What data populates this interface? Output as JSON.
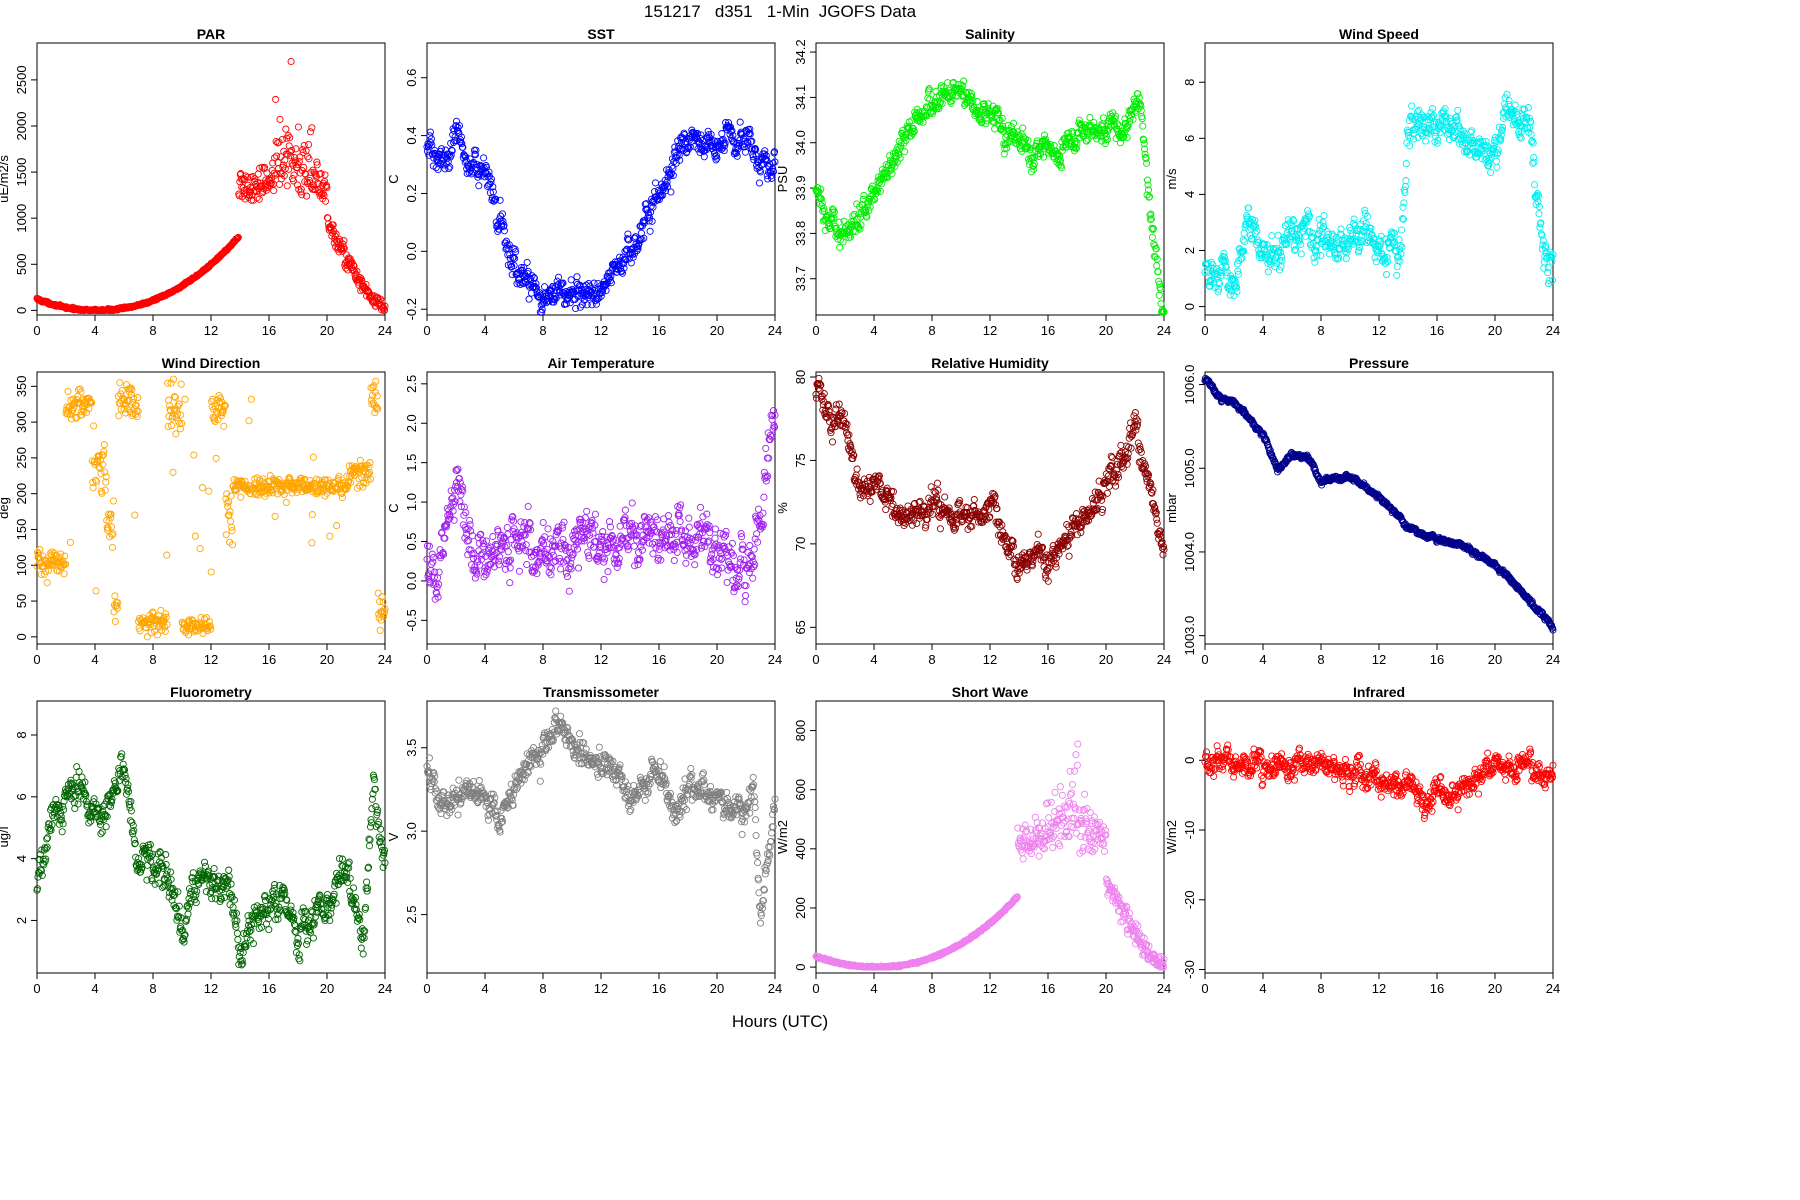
{
  "figure": {
    "title": "151217   d351   1-Min  JGOFS Data",
    "xlabel": "Hours (UTC)"
  },
  "chart_data": [
    {
      "type": "scatter",
      "title": "PAR",
      "ylabel": "uE/m2/s",
      "color": "#ff0000",
      "xlim": [
        0,
        24
      ],
      "ylim": [
        -50,
        2900
      ],
      "xticks": [
        0,
        4,
        8,
        12,
        16,
        20,
        24
      ],
      "yticks": [
        0,
        500,
        1000,
        1500,
        2000,
        2500
      ],
      "shape": "par",
      "min": 0,
      "max": 2750,
      "noise": 0.03
    },
    {
      "type": "scatter",
      "title": "SST",
      "ylabel": "C",
      "color": "#0000ff",
      "xlim": [
        0,
        24
      ],
      "ylim": [
        -0.22,
        0.72
      ],
      "xticks": [
        0,
        4,
        8,
        12,
        16,
        20,
        24
      ],
      "yticks": [
        -0.2,
        0,
        0.2,
        0.4,
        0.6
      ],
      "ytick_labels": [
        "-0.2",
        "0.0",
        "0.2",
        "0.4",
        "0.6"
      ],
      "anchors": [
        [
          0,
          0.33
        ],
        [
          2,
          0.38
        ],
        [
          4,
          0.25
        ],
        [
          6,
          -0.05
        ],
        [
          8,
          -0.15
        ],
        [
          10,
          -0.12
        ],
        [
          12,
          -0.15
        ],
        [
          14,
          0.02
        ],
        [
          16,
          0.2
        ],
        [
          18,
          0.4
        ],
        [
          20,
          0.38
        ],
        [
          22,
          0.4
        ],
        [
          24,
          0.27
        ]
      ],
      "noise": 0.07
    },
    {
      "type": "scatter",
      "title": "Salinity",
      "ylabel": "PSU",
      "color": "#00ee00",
      "xlim": [
        0,
        24
      ],
      "ylim": [
        33.62,
        34.22
      ],
      "xticks": [
        0,
        4,
        8,
        12,
        16,
        20,
        24
      ],
      "yticks": [
        33.7,
        33.8,
        33.9,
        34.0,
        34.1,
        34.2
      ],
      "ytick_labels": [
        "33.7",
        "33.8",
        "33.9",
        "34.0",
        "34.1",
        "34.2"
      ],
      "anchors": [
        [
          0,
          33.88
        ],
        [
          1.5,
          33.8
        ],
        [
          3,
          33.82
        ],
        [
          5,
          33.95
        ],
        [
          7,
          34.05
        ],
        [
          9,
          34.12
        ],
        [
          11,
          34.08
        ],
        [
          13,
          34.03
        ],
        [
          15,
          33.97
        ],
        [
          17,
          34.0
        ],
        [
          19,
          34.02
        ],
        [
          21,
          34.03
        ],
        [
          22.3,
          34.1
        ],
        [
          23,
          33.85
        ],
        [
          24,
          33.62
        ]
      ],
      "noise": 0.04
    },
    {
      "type": "scatter",
      "title": "Wind Speed",
      "ylabel": "m/s",
      "color": "#00eeee",
      "xlim": [
        0,
        24
      ],
      "ylim": [
        -0.3,
        9.4
      ],
      "xticks": [
        0,
        4,
        8,
        12,
        16,
        20,
        24
      ],
      "yticks": [
        0,
        2,
        4,
        6,
        8
      ],
      "anchors": [
        [
          0,
          1.2
        ],
        [
          2,
          1.2
        ],
        [
          3,
          2.8
        ],
        [
          4.5,
          2.0
        ],
        [
          7,
          2.6
        ],
        [
          9,
          2.0
        ],
        [
          11,
          2.5
        ],
        [
          12.5,
          1.7
        ],
        [
          13.5,
          2.0
        ],
        [
          14,
          6.0
        ],
        [
          16,
          6.5
        ],
        [
          18,
          6.2
        ],
        [
          19.5,
          5.4
        ],
        [
          21,
          7.2
        ],
        [
          22.5,
          6.0
        ],
        [
          23.2,
          2.0
        ],
        [
          24,
          1.0
        ]
      ],
      "noise": 0.9
    },
    {
      "type": "scatter",
      "title": "Wind Direction",
      "ylabel": "deg",
      "color": "#ffa500",
      "xlim": [
        0,
        24
      ],
      "ylim": [
        -10,
        370
      ],
      "xticks": [
        0,
        4,
        8,
        12,
        16,
        20,
        24
      ],
      "yticks": [
        0,
        50,
        100,
        150,
        200,
        250,
        300,
        350
      ],
      "segments": [
        [
          0,
          1.8,
          105,
          18
        ],
        [
          2,
          3.8,
          325,
          20
        ],
        [
          3.8,
          4.8,
          240,
          40
        ],
        [
          4.8,
          5.3,
          160,
          30
        ],
        [
          5.3,
          5.6,
          40,
          25
        ],
        [
          5.6,
          7,
          330,
          25
        ],
        [
          7,
          9,
          20,
          15
        ],
        [
          9,
          10,
          320,
          40
        ],
        [
          10,
          12,
          15,
          12
        ],
        [
          12,
          13,
          320,
          25
        ],
        [
          13,
          13.5,
          170,
          40
        ],
        [
          13.5,
          21.5,
          210,
          12
        ],
        [
          21.5,
          23,
          230,
          20
        ],
        [
          23,
          23.5,
          330,
          25
        ],
        [
          23.5,
          24,
          40,
          25
        ]
      ]
    },
    {
      "type": "scatter",
      "title": "Air Temperature",
      "ylabel": "C",
      "color": "#a020f0",
      "xlim": [
        0,
        24
      ],
      "ylim": [
        -0.8,
        2.65
      ],
      "xticks": [
        0,
        4,
        8,
        12,
        16,
        20,
        24
      ],
      "yticks": [
        -0.5,
        0,
        0.5,
        1,
        1.5,
        2,
        2.5
      ],
      "ytick_labels": [
        "-0.5",
        "0.0",
        "0.5",
        "1.0",
        "1.5",
        "2.0",
        "2.5"
      ],
      "anchors": [
        [
          0,
          0.1
        ],
        [
          1,
          0.2
        ],
        [
          2,
          1.2
        ],
        [
          3,
          0.6
        ],
        [
          4,
          0.3
        ],
        [
          6,
          0.4
        ],
        [
          8,
          0.3
        ],
        [
          10,
          0.45
        ],
        [
          12,
          0.4
        ],
        [
          14,
          0.6
        ],
        [
          16,
          0.55
        ],
        [
          18,
          0.6
        ],
        [
          20,
          0.4
        ],
        [
          22,
          0.2
        ],
        [
          23,
          0.5
        ],
        [
          24,
          2.4
        ]
      ],
      "noise": 0.45
    },
    {
      "type": "scatter",
      "title": "Relative Humidity",
      "ylabel": "%",
      "color": "#8b0000",
      "xlim": [
        0,
        24
      ],
      "ylim": [
        64,
        80.3
      ],
      "xticks": [
        0,
        4,
        8,
        12,
        16,
        20,
        24
      ],
      "yticks": [
        65,
        70,
        75,
        80
      ],
      "anchors": [
        [
          0,
          79
        ],
        [
          2,
          77
        ],
        [
          3,
          73
        ],
        [
          4,
          74
        ],
        [
          6,
          71.5
        ],
        [
          8,
          72.5
        ],
        [
          10,
          71.5
        ],
        [
          12,
          72
        ],
        [
          13,
          70.5
        ],
        [
          14,
          68.5
        ],
        [
          15,
          69.5
        ],
        [
          16,
          69
        ],
        [
          18,
          71
        ],
        [
          20,
          73.5
        ],
        [
          22,
          77
        ],
        [
          23,
          73
        ],
        [
          24,
          69.5
        ]
      ],
      "noise": 1.2
    },
    {
      "type": "scatter",
      "title": "Pressure",
      "ylabel": "mbar",
      "color": "#00008b",
      "xlim": [
        0,
        24
      ],
      "ylim": [
        1002.9,
        1006.15
      ],
      "xticks": [
        0,
        4,
        8,
        12,
        16,
        20,
        24
      ],
      "yticks": [
        1003,
        1004,
        1005,
        1006
      ],
      "ytick_labels": [
        "1003.0",
        "1004.0",
        "1005.0",
        "1006.0"
      ],
      "anchors": [
        [
          0,
          1006.05
        ],
        [
          1,
          1005.85
        ],
        [
          2,
          1005.8
        ],
        [
          4,
          1005.4
        ],
        [
          5,
          1005.0
        ],
        [
          6,
          1005.15
        ],
        [
          7,
          1005.15
        ],
        [
          8,
          1004.85
        ],
        [
          10,
          1004.9
        ],
        [
          12,
          1004.65
        ],
        [
          13,
          1004.5
        ],
        [
          14,
          1004.3
        ],
        [
          16,
          1004.15
        ],
        [
          18,
          1004.05
        ],
        [
          20,
          1003.85
        ],
        [
          22,
          1003.5
        ],
        [
          23,
          1003.3
        ],
        [
          24,
          1003.1
        ]
      ],
      "noise": 0.04
    },
    {
      "type": "scatter",
      "title": "Fluorometry",
      "ylabel": "ug/l",
      "color": "#006400",
      "xlim": [
        0,
        24
      ],
      "ylim": [
        0.3,
        9.1
      ],
      "xticks": [
        0,
        4,
        8,
        12,
        16,
        20,
        24
      ],
      "yticks": [
        2,
        4,
        6,
        8
      ],
      "anchors": [
        [
          0,
          3
        ],
        [
          1,
          5.5
        ],
        [
          3,
          6.3
        ],
        [
          4.5,
          5
        ],
        [
          6,
          6.8
        ],
        [
          7,
          4
        ],
        [
          9,
          3.5
        ],
        [
          10,
          1.8
        ],
        [
          11,
          3.5
        ],
        [
          13,
          3.2
        ],
        [
          14,
          1
        ],
        [
          15,
          2.2
        ],
        [
          17,
          2.8
        ],
        [
          18,
          1.5
        ],
        [
          20,
          2.5
        ],
        [
          21.5,
          3.5
        ],
        [
          22.5,
          1
        ],
        [
          23.2,
          6.5
        ],
        [
          24,
          3.5
        ]
      ],
      "noise": 0.8
    },
    {
      "type": "scatter",
      "title": "Transmissometer",
      "ylabel": "V",
      "color": "#808080",
      "xlim": [
        0,
        24
      ],
      "ylim": [
        2.15,
        3.78
      ],
      "xticks": [
        0,
        4,
        8,
        12,
        16,
        20,
        24
      ],
      "yticks": [
        2.5,
        3.0,
        3.5
      ],
      "ytick_labels": [
        "2.5",
        "3.0",
        "3.5"
      ],
      "anchors": [
        [
          0,
          3.35
        ],
        [
          1,
          3.15
        ],
        [
          3,
          3.25
        ],
        [
          5,
          3.05
        ],
        [
          6,
          3.3
        ],
        [
          8,
          3.5
        ],
        [
          9,
          3.65
        ],
        [
          11,
          3.45
        ],
        [
          13,
          3.4
        ],
        [
          14,
          3.2
        ],
        [
          16,
          3.35
        ],
        [
          17,
          3.1
        ],
        [
          18,
          3.25
        ],
        [
          20,
          3.2
        ],
        [
          22,
          3.15
        ],
        [
          22.5,
          3.3
        ],
        [
          23,
          2.5
        ],
        [
          24,
          3.1
        ]
      ],
      "noise": 0.12
    },
    {
      "type": "scatter",
      "title": "Short Wave",
      "ylabel": "W/m2",
      "color": "#ee82ee",
      "xlim": [
        0,
        24
      ],
      "ylim": [
        -20,
        900
      ],
      "xticks": [
        0,
        4,
        8,
        12,
        16,
        20,
        24
      ],
      "yticks": [
        0,
        200,
        400,
        600,
        800
      ],
      "shape": "sw",
      "min": 0,
      "max": 820,
      "noise": 0.03
    },
    {
      "type": "scatter",
      "title": "Infrared",
      "ylabel": "W/m2",
      "color": "#ff0000",
      "xlim": [
        0,
        24
      ],
      "ylim": [
        -30.5,
        8.5
      ],
      "xticks": [
        0,
        4,
        8,
        12,
        16,
        20,
        24
      ],
      "yticks": [
        -30,
        -20,
        -10,
        0
      ],
      "anchors": [
        [
          0,
          0
        ],
        [
          2,
          0
        ],
        [
          4,
          -1
        ],
        [
          6,
          0
        ],
        [
          8,
          -1
        ],
        [
          10,
          -2
        ],
        [
          12,
          -3
        ],
        [
          14,
          -3
        ],
        [
          15,
          -6
        ],
        [
          16,
          -5
        ],
        [
          18,
          -4
        ],
        [
          19,
          -2
        ],
        [
          20,
          -1
        ],
        [
          22,
          -1
        ],
        [
          24,
          -2
        ]
      ],
      "noise": 2.5
    }
  ]
}
